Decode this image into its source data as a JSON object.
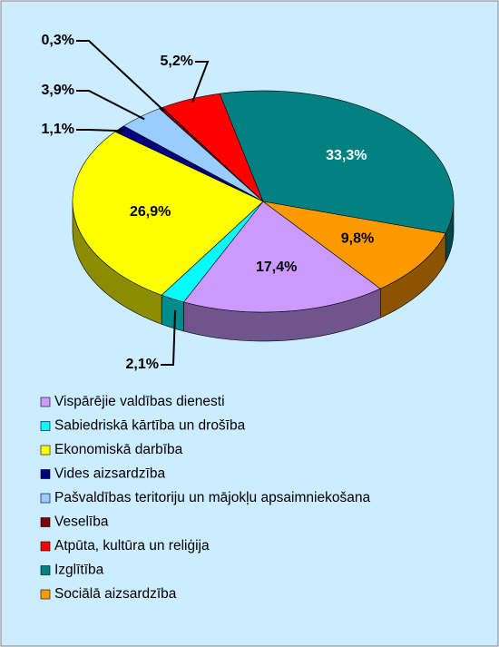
{
  "chart_data": {
    "type": "pie",
    "categories": [
      "Vispārējie valdības dienesti",
      "Sabiedriskā kārtība un drošība",
      "Ekonomiskā darbība",
      "Vides aizsardzība",
      "Pašvaldības teritoriju un mājokļu apsaimniekošana",
      "Veselība",
      "Atpūta, kultūra un reliģija",
      "Izglītība",
      "Sociālā aizsardzība"
    ],
    "values": [
      17.4,
      2.1,
      26.9,
      1.1,
      3.9,
      0.3,
      5.2,
      33.3,
      9.8
    ],
    "value_labels": [
      "17,4%",
      "2,1%",
      "26,9%",
      "1,1%",
      "3,9%",
      "0,3%",
      "5,2%",
      "33,3%",
      "9,8%"
    ],
    "colors": [
      "#cc99ff",
      "#00ffff",
      "#ffff00",
      "#000080",
      "#99ccff",
      "#800000",
      "#ff0000",
      "#008080",
      "#ff9900"
    ],
    "legend": "bottom"
  }
}
